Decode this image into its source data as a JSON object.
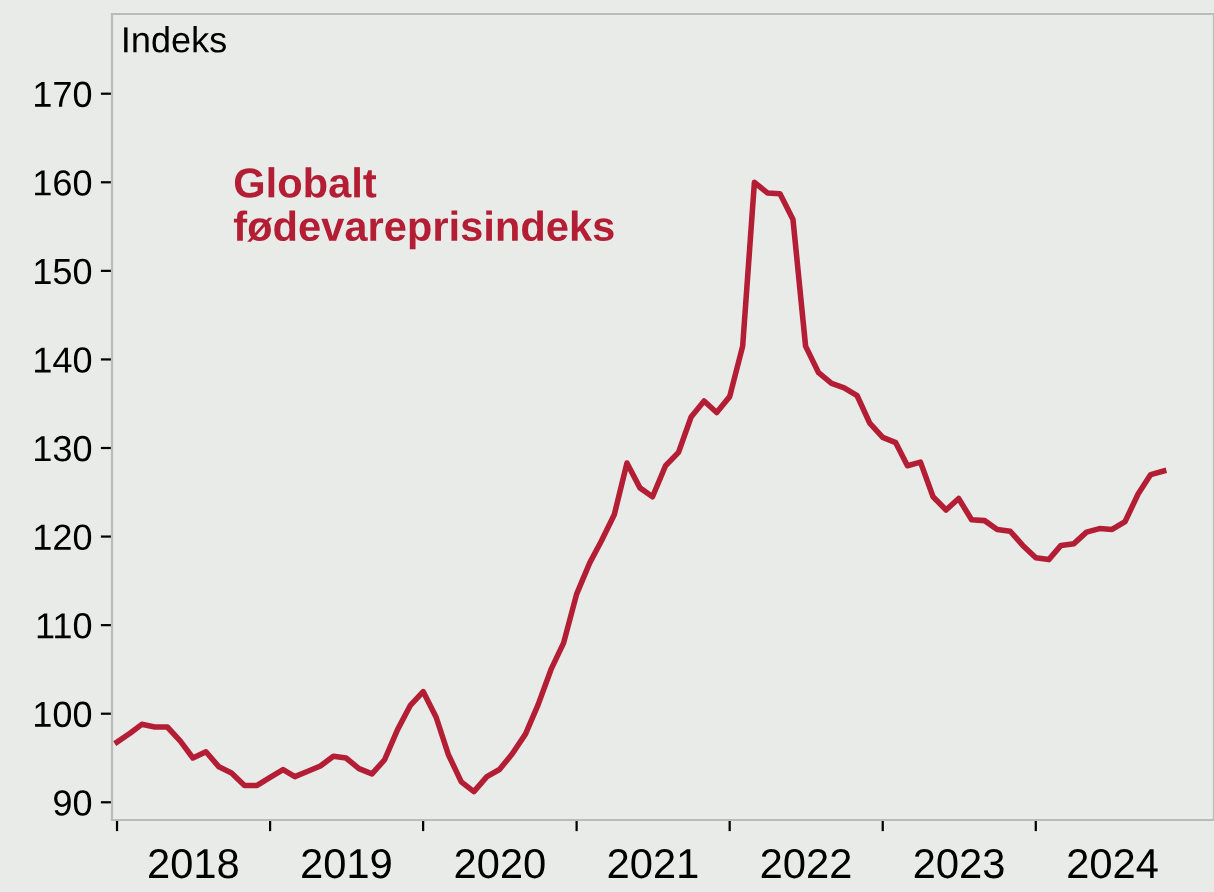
{
  "chart_data": {
    "type": "line",
    "ylabel": "Indeks",
    "annotations": [
      "Globalt\nfødevareprisindeks"
    ],
    "x": [
      "2018-01",
      "2018-02",
      "2018-03",
      "2018-04",
      "2018-05",
      "2018-06",
      "2018-07",
      "2018-08",
      "2018-09",
      "2018-10",
      "2018-11",
      "2018-12",
      "2019-01",
      "2019-02",
      "2019-03",
      "2019-04",
      "2019-05",
      "2019-06",
      "2019-07",
      "2019-08",
      "2019-09",
      "2019-10",
      "2019-11",
      "2019-12",
      "2020-01",
      "2020-02",
      "2020-03",
      "2020-04",
      "2020-05",
      "2020-06",
      "2020-07",
      "2020-08",
      "2020-09",
      "2020-10",
      "2020-11",
      "2020-12",
      "2021-01",
      "2021-02",
      "2021-03",
      "2021-04",
      "2021-05",
      "2021-06",
      "2021-07",
      "2021-08",
      "2021-09",
      "2021-10",
      "2021-11",
      "2021-12",
      "2022-01",
      "2022-02",
      "2022-03",
      "2022-04",
      "2022-05",
      "2022-06",
      "2022-07",
      "2022-08",
      "2022-09",
      "2022-10",
      "2022-11",
      "2022-12",
      "2023-01",
      "2023-02",
      "2023-03",
      "2023-04",
      "2023-05",
      "2023-06",
      "2023-07",
      "2023-08",
      "2023-09",
      "2023-10",
      "2023-11",
      "2023-12",
      "2024-01",
      "2024-02",
      "2024-03",
      "2024-04",
      "2024-05",
      "2024-06",
      "2024-07",
      "2024-08",
      "2024-09",
      "2024-10",
      "2024-11"
    ],
    "series": [
      {
        "color": "#b41e35",
        "values": [
          96.8,
          97.8,
          98.8,
          98.5,
          98.5,
          96.9,
          95.0,
          95.7,
          94.0,
          93.3,
          91.9,
          91.9,
          92.8,
          93.7,
          92.9,
          93.5,
          94.1,
          95.2,
          95.0,
          93.8,
          93.2,
          94.8,
          98.2,
          100.9,
          102.5,
          99.6,
          95.4,
          92.3,
          91.2,
          92.9,
          93.7,
          95.5,
          97.7,
          101.0,
          105.0,
          108.0,
          113.5,
          117.0,
          119.5,
          122.5,
          128.3,
          125.5,
          124.5,
          128.0,
          129.5,
          133.5,
          135.3,
          134.0,
          135.8,
          141.5,
          160.0,
          158.8,
          158.7,
          155.8,
          141.5,
          138.5,
          137.3,
          136.8,
          135.9,
          132.8,
          131.2,
          130.6,
          128.0,
          128.4,
          124.5,
          123.0,
          124.3,
          121.9,
          121.8,
          120.8,
          120.6,
          119.0,
          117.6,
          117.4,
          119.0,
          119.2,
          120.5,
          120.9,
          120.8,
          121.7,
          124.8,
          127.0,
          127.4
        ]
      }
    ],
    "xlim": [
      "2017-12-20",
      "2025-03-01"
    ],
    "ylim": [
      88,
      179
    ],
    "yticks": [
      90,
      100,
      110,
      120,
      130,
      140,
      150,
      160,
      170
    ],
    "xticks": [
      {
        "value": "2018-01-01",
        "label": null
      },
      {
        "value": "2018-07-02",
        "label": "2018"
      },
      {
        "value": "2019-01-01",
        "label": null
      },
      {
        "value": "2019-07-02",
        "label": "2019"
      },
      {
        "value": "2020-01-01",
        "label": null
      },
      {
        "value": "2020-07-02",
        "label": "2020"
      },
      {
        "value": "2021-01-01",
        "label": null
      },
      {
        "value": "2021-07-02",
        "label": "2021"
      },
      {
        "value": "2022-01-01",
        "label": null
      },
      {
        "value": "2022-07-02",
        "label": "2022"
      },
      {
        "value": "2023-01-01",
        "label": null
      },
      {
        "value": "2023-07-02",
        "label": "2023"
      },
      {
        "value": "2024-01-01",
        "label": null
      },
      {
        "value": "2024-07-02",
        "label": "2024"
      }
    ],
    "grid": false,
    "legend": false,
    "marker": "none",
    "line_style": "solid"
  }
}
